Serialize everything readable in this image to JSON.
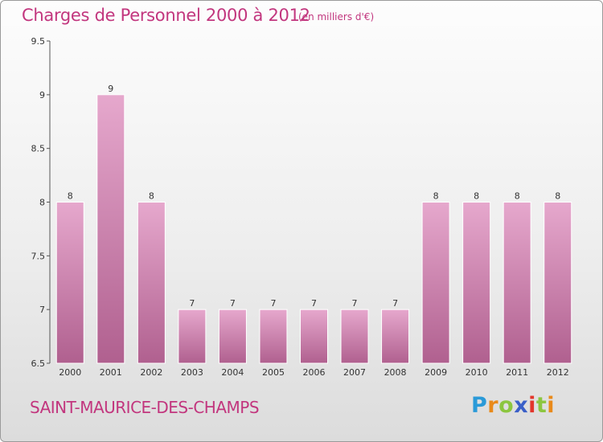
{
  "header": {
    "title": "Charges de Personnel 2000 à 2012",
    "subtitle": "(en milliers d'€)"
  },
  "footer": {
    "commune": "SAINT-MAURICE-DES-CHAMPS",
    "logo_text": "Proxiti"
  },
  "colors": {
    "accent": "#c2367e",
    "bar_top": "#e6a8cd",
    "bar_bottom": "#b0608f"
  },
  "chart_data": {
    "type": "bar",
    "title": "Charges de Personnel 2000 à 2012",
    "subtitle": "(en milliers d'€)",
    "categories": [
      "2000",
      "2001",
      "2002",
      "2003",
      "2004",
      "2005",
      "2006",
      "2007",
      "2008",
      "2009",
      "2010",
      "2011",
      "2012"
    ],
    "values": [
      8,
      9,
      8,
      7,
      7,
      7,
      7,
      7,
      7,
      8,
      8,
      8,
      8
    ],
    "data_labels": [
      "8",
      "9",
      "8",
      "7",
      "7",
      "7",
      "7",
      "7",
      "7",
      "8",
      "8",
      "8",
      "8"
    ],
    "ylim": [
      6.5,
      9.5
    ],
    "yticks": [
      "6.5",
      "7",
      "7.5",
      "8",
      "8.5",
      "9",
      "9.5"
    ],
    "grid": false,
    "xlabel": "",
    "ylabel": ""
  }
}
